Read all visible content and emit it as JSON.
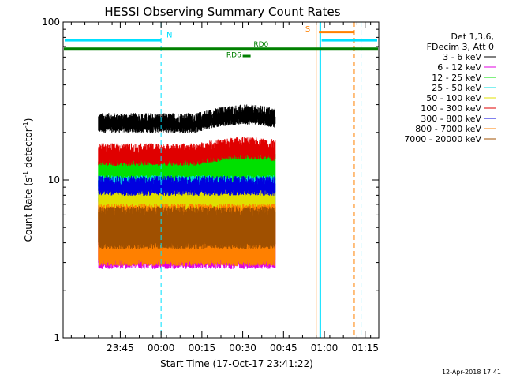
{
  "chart_data": {
    "type": "line",
    "title": "HESSI Observing Summary Count Rates",
    "xlabel": "Start Time (17-Oct-17 23:41:22)",
    "ylabel_main": "Count Rate (s",
    "ylabel_sup": "-1",
    "ylabel_mid": " detector",
    "ylabel_end": ")",
    "y_scale": "log",
    "ylim": [
      1,
      100
    ],
    "y_ticks": [
      {
        "value": 1,
        "label": "1"
      },
      {
        "value": 10,
        "label": "10"
      },
      {
        "value": 100,
        "label": "100"
      }
    ],
    "xlim_min": [
      -18,
      98
    ],
    "x_ticks": [
      {
        "value": 3,
        "label": "23:45"
      },
      {
        "value": 18,
        "label": "00:00"
      },
      {
        "value": 33,
        "label": "00:15"
      },
      {
        "value": 48,
        "label": "00:30"
      },
      {
        "value": 63,
        "label": "00:45"
      },
      {
        "value": 78,
        "label": "01:00"
      },
      {
        "value": 93,
        "label": "01:15"
      }
    ],
    "legend_header": [
      "Det 1,3,6,",
      "FDecim 3, Att 0"
    ],
    "series": [
      {
        "name": "3 - 6 keV",
        "color": "#000000",
        "base": 23,
        "slope": 3,
        "band": 1.1
      },
      {
        "name": "6 - 12 keV",
        "color": "#e000e0",
        "base": 4.6,
        "slope": 0,
        "band": 1.6
      },
      {
        "name": "12 - 25 keV",
        "color": "#00e000",
        "base": 11.5,
        "slope": 0.8,
        "band": 1.25
      },
      {
        "name": "25 - 50 keV",
        "color": "#00e0e0",
        "base": 8.5,
        "slope": 0,
        "band": 1.2
      },
      {
        "name": "50 - 100 keV",
        "color": "#e0e000",
        "base": 7,
        "slope": 0,
        "band": 1.25
      },
      {
        "name": "100 - 300 keV",
        "color": "#e00000",
        "base": 14.5,
        "slope": 1.4,
        "band": 1.12
      },
      {
        "name": "300 - 800 keV",
        "color": "#0000e0",
        "base": 9.2,
        "slope": 0,
        "band": 1.1
      },
      {
        "name": "800 - 7000 keV",
        "color": "#ff8000",
        "base": 4.5,
        "slope": 0,
        "band": 1.5
      },
      {
        "name": "7000 - 20000 keV",
        "color": "#a05000",
        "base": 5,
        "slope": 0,
        "band": 1.3
      }
    ],
    "data_span_min": [
      -5,
      60
    ],
    "markers": {
      "n_label": "N",
      "s_label": "S",
      "rd6_label": "RD6",
      "rd0_label": "RD0"
    },
    "grid": false,
    "legend_placement": "right"
  },
  "footer": {
    "timestamp": "12-Apr-2018 17:41"
  },
  "colors": {
    "night": "#00e0ff",
    "saa": "#ff8000",
    "flag": "#008000"
  }
}
